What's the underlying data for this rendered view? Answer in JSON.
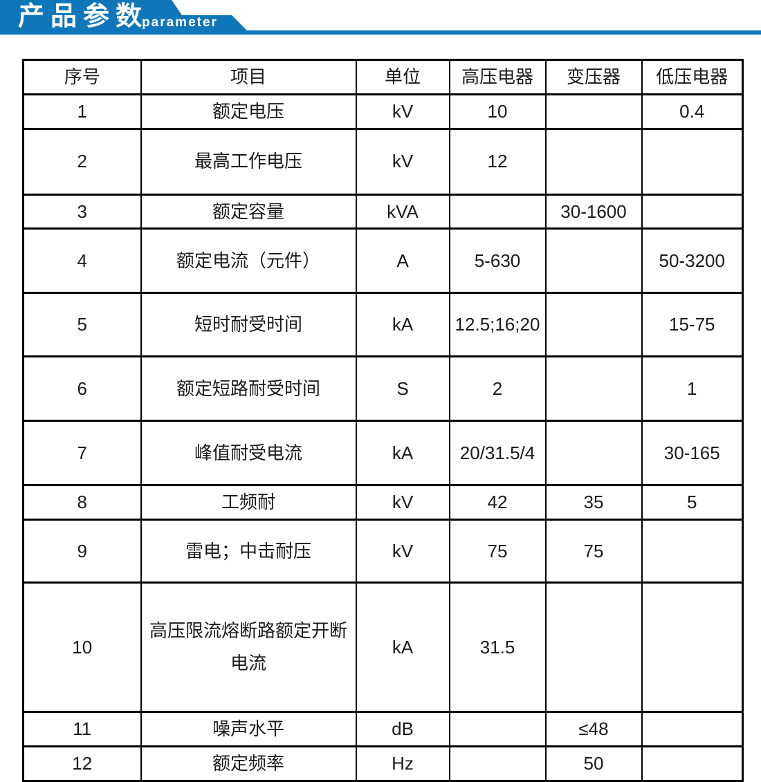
{
  "banner": {
    "title": "产品参数",
    "subtitle": "parameter",
    "accent_color": "#0f76ba"
  },
  "table": {
    "columns": [
      "序号",
      "项目",
      "单位",
      "高压电器",
      "变压器",
      "低压电器"
    ],
    "rows": [
      {
        "no": "1",
        "item": "额定电压",
        "unit": "kV",
        "hv": "10",
        "transformer": "",
        "lv": "0.4"
      },
      {
        "no": "2",
        "item": "最高工作电压",
        "unit": "kV",
        "hv": "12",
        "transformer": "",
        "lv": ""
      },
      {
        "no": "3",
        "item": "额定容量",
        "unit": "kVA",
        "hv": "",
        "transformer": "30-1600",
        "lv": ""
      },
      {
        "no": "4",
        "item": "额定电流（元件）",
        "unit": "A",
        "hv": "5-630",
        "transformer": "",
        "lv": "50-3200"
      },
      {
        "no": "5",
        "item": "短时耐受时间",
        "unit": "kA",
        "hv": "12.5;16;20",
        "transformer": "",
        "lv": "15-75"
      },
      {
        "no": "6",
        "item": "额定短路耐受时间",
        "unit": "S",
        "hv": "2",
        "transformer": "",
        "lv": "1"
      },
      {
        "no": "7",
        "item": "峰值耐受电流",
        "unit": "kA",
        "hv": "20/31.5/4",
        "transformer": "",
        "lv": "30-165"
      },
      {
        "no": "8",
        "item": "工频耐",
        "unit": "kV",
        "hv": "42",
        "transformer": "35",
        "lv": "5"
      },
      {
        "no": "9",
        "item": "雷电；中击耐压",
        "unit": "kV",
        "hv": "75",
        "transformer": "75",
        "lv": ""
      },
      {
        "no": "10",
        "item": "高压限流熔断路额定开断电流",
        "unit": "kA",
        "hv": "31.5",
        "transformer": "",
        "lv": ""
      },
      {
        "no": "11",
        "item": "噪声水平",
        "unit": "dB",
        "hv": "",
        "transformer": "≤48",
        "lv": ""
      },
      {
        "no": "12",
        "item": "额定频率",
        "unit": "Hz",
        "hv": "",
        "transformer": "50",
        "lv": ""
      }
    ]
  }
}
